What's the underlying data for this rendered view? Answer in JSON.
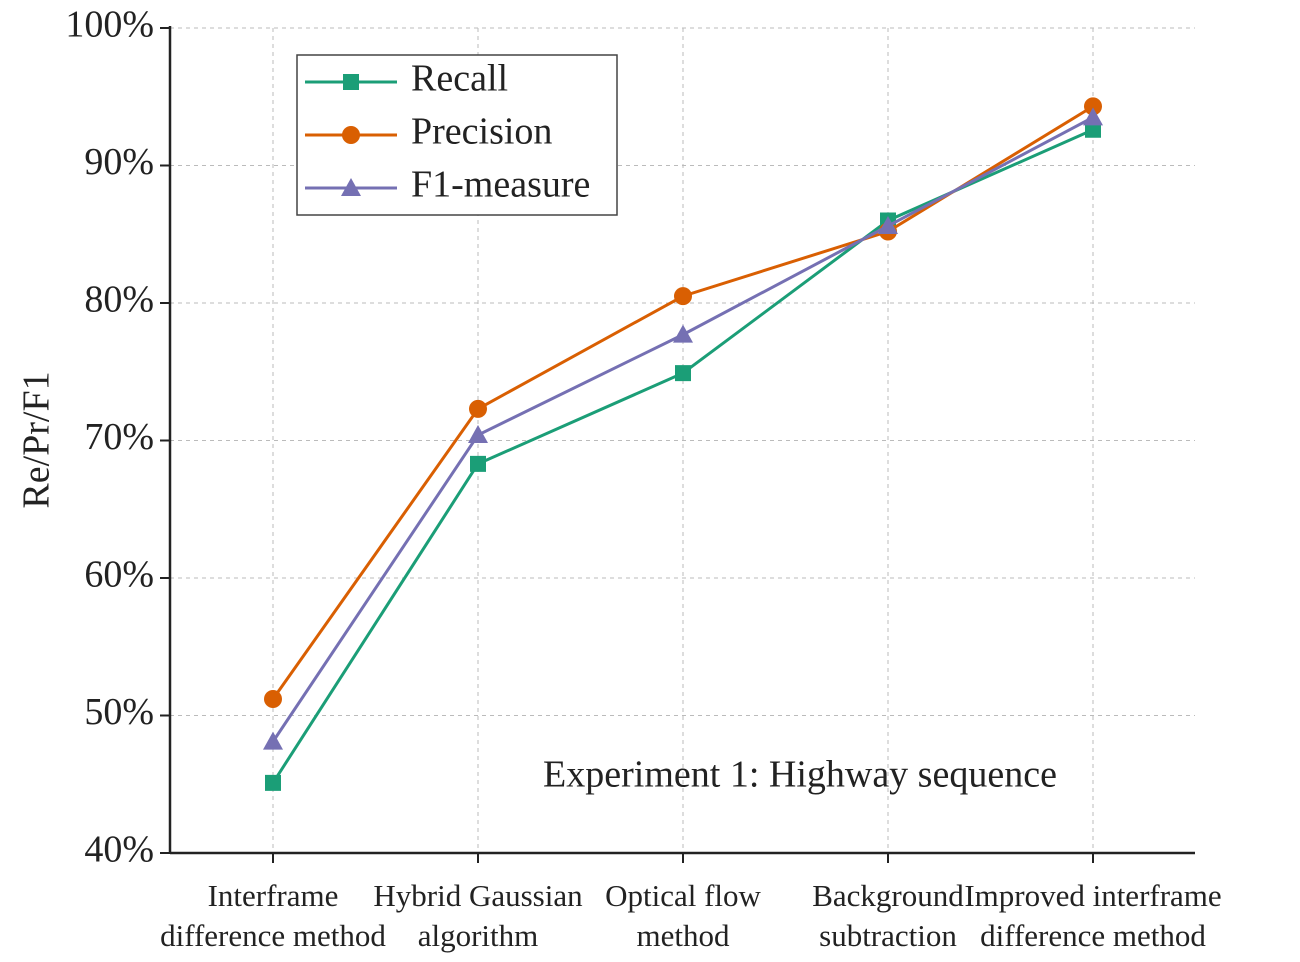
{
  "chart_data": {
    "type": "line",
    "ylabel": "Re/Pr/F1",
    "annotation": "Experiment 1: Highway sequence",
    "categories": [
      "Interframe\ndifference method",
      "Hybrid Gaussian\nalgorithm",
      "Optical flow\nmethod",
      "Background\nsubtraction",
      "Improved interframe\ndifference method"
    ],
    "series": [
      {
        "name": "Recall",
        "color": "#1b9e77",
        "marker": "square",
        "values": [
          45.1,
          68.3,
          74.9,
          86.0,
          92.6
        ]
      },
      {
        "name": "Precision",
        "color": "#d95f02",
        "marker": "circle",
        "values": [
          51.2,
          72.3,
          80.5,
          85.2,
          94.3
        ]
      },
      {
        "name": "F1-measure",
        "color": "#7570b3",
        "marker": "triangle",
        "values": [
          48.1,
          70.4,
          77.7,
          85.6,
          93.5
        ]
      }
    ],
    "ylim": [
      40,
      100
    ],
    "yticks": [
      {
        "value": 40,
        "label": "40%"
      },
      {
        "value": 50,
        "label": "50%"
      },
      {
        "value": 60,
        "label": "60%"
      },
      {
        "value": 70,
        "label": "70%"
      },
      {
        "value": 80,
        "label": "80%"
      },
      {
        "value": 90,
        "label": "90%"
      },
      {
        "value": 100,
        "label": "100%"
      }
    ],
    "grid": true,
    "legend": "upper-left"
  }
}
